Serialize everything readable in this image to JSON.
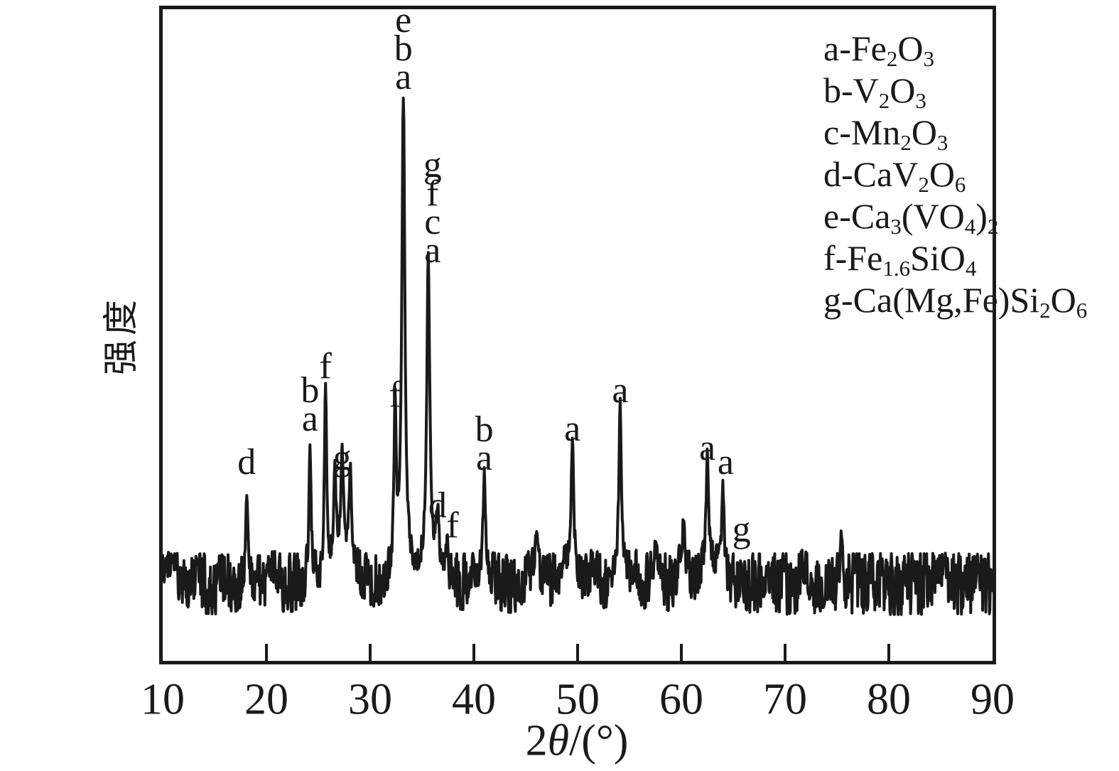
{
  "figure": {
    "background": "#ffffff",
    "ink_color": "#1a1a1a",
    "y_axis_label": "强度",
    "x_axis_title": {
      "prefix": "2",
      "theta": "θ",
      "suffix": "/(°)"
    },
    "x_tick_labels": [
      "10",
      "20",
      "30",
      "40",
      "50",
      "60",
      "70",
      "80",
      "90"
    ]
  },
  "legend": {
    "entries": [
      {
        "key": "a",
        "parts": [
          {
            "t": "a-Fe"
          },
          {
            "t": "2",
            "sub": true
          },
          {
            "t": "O"
          },
          {
            "t": "3",
            "sub": true
          }
        ]
      },
      {
        "key": "b",
        "parts": [
          {
            "t": "b-V"
          },
          {
            "t": "2",
            "sub": true
          },
          {
            "t": "O"
          },
          {
            "t": "3",
            "sub": true
          }
        ]
      },
      {
        "key": "c",
        "parts": [
          {
            "t": "c-Mn"
          },
          {
            "t": "2",
            "sub": true
          },
          {
            "t": "O"
          },
          {
            "t": "3",
            "sub": true
          }
        ]
      },
      {
        "key": "d",
        "parts": [
          {
            "t": "d-CaV"
          },
          {
            "t": "2",
            "sub": true
          },
          {
            "t": "O"
          },
          {
            "t": "6",
            "sub": true
          }
        ]
      },
      {
        "key": "e",
        "parts": [
          {
            "t": "e-Ca"
          },
          {
            "t": "3",
            "sub": true
          },
          {
            "t": "(VO"
          },
          {
            "t": "4",
            "sub": true
          },
          {
            "t": ")"
          },
          {
            "t": "2",
            "sub": true
          }
        ]
      },
      {
        "key": "f",
        "parts": [
          {
            "t": "f-Fe"
          },
          {
            "t": "1.6",
            "sub": true
          },
          {
            "t": "SiO"
          },
          {
            "t": "4",
            "sub": true
          }
        ]
      },
      {
        "key": "g",
        "parts": [
          {
            "t": "g-Ca(Mg,Fe)Si"
          },
          {
            "t": "2",
            "sub": true
          },
          {
            "t": "O"
          },
          {
            "t": "6",
            "sub": true
          }
        ]
      }
    ]
  },
  "chart_data": {
    "type": "line",
    "title": "",
    "xlabel": "2θ/(°)",
    "ylabel": "强度",
    "xlim": [
      10,
      90
    ],
    "x_tick_interval": 10,
    "grid": false,
    "y_units": "arbitrary intensity, tallest peak = 100",
    "noise_band_amplitude": 5,
    "phases": {
      "a": "Fe2O3",
      "b": "V2O3",
      "c": "Mn2O3",
      "d": "CaV2O6",
      "e": "Ca3(VO4)2",
      "f": "Fe1.6SiO4",
      "g": "Ca(Mg,Fe)Si2O6"
    },
    "peaks": [
      {
        "two_theta": 18.1,
        "intensity": 20,
        "labels": [
          "d"
        ]
      },
      {
        "two_theta": 24.2,
        "intensity": 29,
        "labels": [
          "b",
          "a"
        ]
      },
      {
        "two_theta": 25.7,
        "intensity": 40,
        "labels": [
          "f"
        ]
      },
      {
        "two_theta": 26.6,
        "intensity": 19,
        "labels": []
      },
      {
        "two_theta": 27.3,
        "intensity": 21,
        "labels": [
          "g"
        ]
      },
      {
        "two_theta": 28.1,
        "intensity": 19,
        "labels": []
      },
      {
        "two_theta": 32.4,
        "intensity": 34,
        "labels": [
          "f"
        ]
      },
      {
        "two_theta": 33.2,
        "intensity": 100,
        "labels": [
          "e",
          "b",
          "a"
        ],
        "width": 0.17
      },
      {
        "two_theta": 35.6,
        "intensity": 64,
        "labels": [
          "g",
          "f",
          "c",
          "a"
        ],
        "width": 0.17,
        "label_dx": 6
      },
      {
        "two_theta": 36.5,
        "intensity": 11,
        "labels": [
          "d"
        ]
      },
      {
        "two_theta": 37.4,
        "intensity": 7,
        "labels": [
          "f"
        ],
        "label_dx": 8
      },
      {
        "two_theta": 41.0,
        "intensity": 21,
        "labels": [
          "b",
          "a"
        ]
      },
      {
        "two_theta": 46.0,
        "intensity": 8,
        "labels": []
      },
      {
        "two_theta": 49.5,
        "intensity": 27,
        "labels": [
          "a"
        ]
      },
      {
        "two_theta": 54.1,
        "intensity": 35,
        "labels": [
          "a"
        ]
      },
      {
        "two_theta": 57.6,
        "intensity": 7,
        "labels": []
      },
      {
        "two_theta": 60.2,
        "intensity": 8,
        "labels": []
      },
      {
        "two_theta": 62.5,
        "intensity": 23,
        "labels": [
          "a"
        ]
      },
      {
        "two_theta": 64.0,
        "intensity": 20,
        "labels": [
          "a"
        ],
        "label_dx": 4
      },
      {
        "two_theta": 65.8,
        "intensity": 6,
        "labels": [
          "g"
        ]
      },
      {
        "two_theta": 75.4,
        "intensity": 10,
        "labels": []
      },
      {
        "two_theta": 88.6,
        "intensity": 6,
        "labels": []
      }
    ],
    "background_humps": [
      {
        "two_theta": 10.0,
        "intensity": 3,
        "width": 1.5
      },
      {
        "two_theta": 20.6,
        "intensity": 4,
        "width": 0.4
      },
      {
        "two_theta": 27.4,
        "intensity": 7,
        "width": 1.0
      },
      {
        "two_theta": 33.2,
        "intensity": 3,
        "width": 0.9
      },
      {
        "two_theta": 35.9,
        "intensity": 4,
        "width": 1.0
      },
      {
        "two_theta": 41.0,
        "intensity": 3,
        "width": 0.7
      },
      {
        "two_theta": 45.9,
        "intensity": 3,
        "width": 0.8
      },
      {
        "two_theta": 49.2,
        "intensity": 5,
        "width": 0.7
      },
      {
        "two_theta": 51.5,
        "intensity": 3,
        "width": 0.5
      },
      {
        "two_theta": 54.0,
        "intensity": 4,
        "width": 0.5
      },
      {
        "two_theta": 55.5,
        "intensity": 4,
        "width": 0.35
      },
      {
        "two_theta": 57.5,
        "intensity": 3,
        "width": 0.5
      },
      {
        "two_theta": 60.1,
        "intensity": 5,
        "width": 0.45
      },
      {
        "two_theta": 62.8,
        "intensity": 5,
        "width": 0.9
      },
      {
        "two_theta": 68.3,
        "intensity": 3,
        "width": 0.4
      },
      {
        "two_theta": 71.9,
        "intensity": 4,
        "width": 0.35
      },
      {
        "two_theta": 85.0,
        "intensity": 3,
        "width": 0.6
      }
    ]
  }
}
